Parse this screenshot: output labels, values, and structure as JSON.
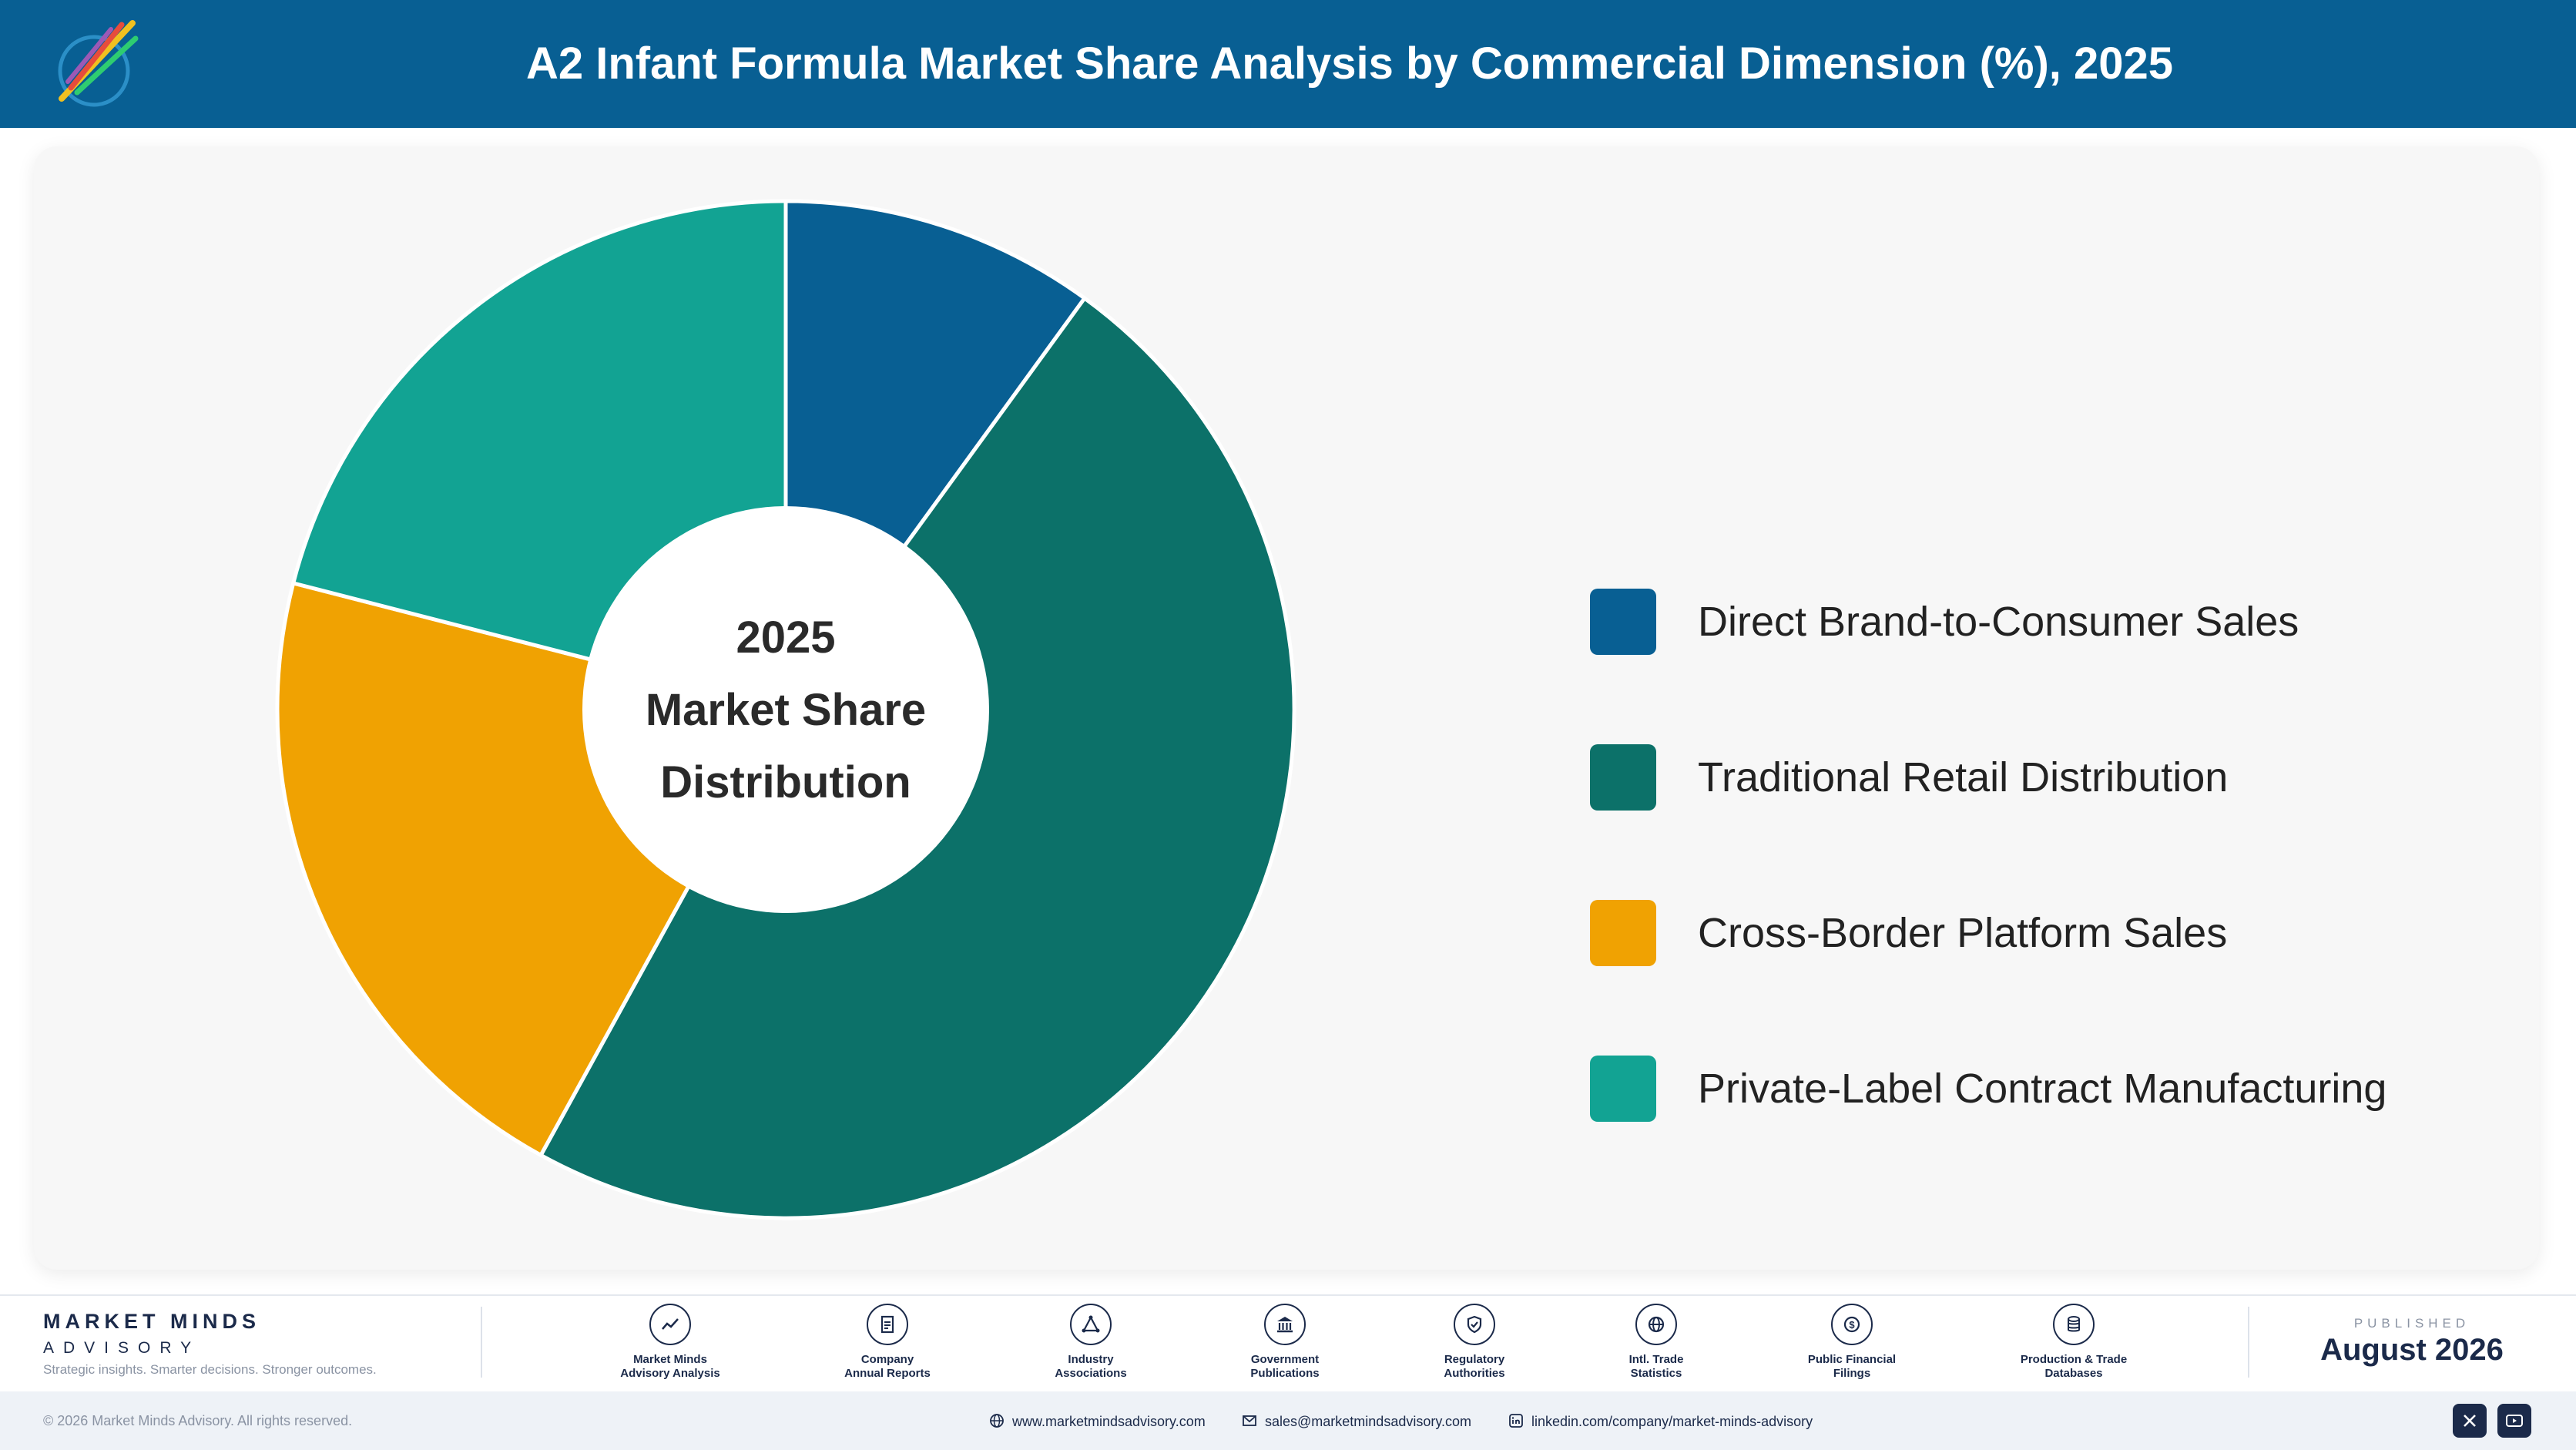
{
  "header": {
    "title": "A2 Infant Formula Market Share Analysis by Commercial Dimension (%), 2025"
  },
  "chart_data": {
    "type": "pie",
    "variant": "donut",
    "center_label": [
      "2025",
      "Market Share",
      "Distribution"
    ],
    "categories": [
      "Direct Brand-to-Consumer Sales",
      "Traditional Retail Distribution",
      "Cross-Border Platform Sales",
      "Private-Label Contract Manufacturing"
    ],
    "values": [
      10,
      48,
      21,
      21
    ],
    "colors": [
      "#085f93",
      "#0c7169",
      "#f0a202",
      "#12a393"
    ],
    "legend_position": "right"
  },
  "footer": {
    "brand_name": "MARKET MINDS",
    "brand_sub": "ADVISORY",
    "tagline": "Strategic insights. Smarter decisions. Stronger outcomes.",
    "sources": [
      {
        "label": "Market Minds\nAdvisory Analysis",
        "icon": "chart-line-icon"
      },
      {
        "label": "Company\nAnnual Reports",
        "icon": "document-icon"
      },
      {
        "label": "Industry\nAssociations",
        "icon": "network-icon"
      },
      {
        "label": "Government\nPublications",
        "icon": "government-building-icon"
      },
      {
        "label": "Regulatory\nAuthorities",
        "icon": "shield-check-icon"
      },
      {
        "label": "Intl. Trade\nStatistics",
        "icon": "globe-icon"
      },
      {
        "label": "Public Financial\nFilings",
        "icon": "dollar-coin-icon"
      },
      {
        "label": "Production & Trade\nDatabases",
        "icon": "database-icon"
      }
    ],
    "published_label": "PUBLISHED",
    "published_date": "August 2026",
    "copyright": "© 2026 Market Minds Advisory. All rights reserved.",
    "website": "www.marketmindsadvisory.com",
    "email": "sales@marketmindsadvisory.com",
    "linkedin": "linkedin.com/company/market-minds-advisory"
  }
}
